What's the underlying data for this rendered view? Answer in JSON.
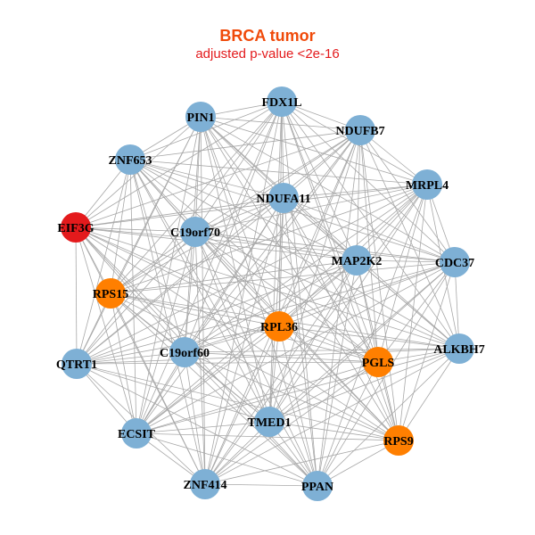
{
  "title": "BRCA tumor",
  "subtitle": "adjusted p-value <2e-16",
  "colors": {
    "default": "#7eb0d5",
    "orange": "#ff7f00",
    "red": "#e41a1c",
    "edge": "#a8a8a8"
  },
  "nodes": [
    {
      "name": "FDX1L",
      "color": "default"
    },
    {
      "name": "PIN1",
      "color": "default"
    },
    {
      "name": "NDUFB7",
      "color": "default"
    },
    {
      "name": "ZNF653",
      "color": "default"
    },
    {
      "name": "MRPL4",
      "color": "default"
    },
    {
      "name": "NDUFA11",
      "color": "default"
    },
    {
      "name": "EIF3G",
      "color": "red"
    },
    {
      "name": "C19orf70",
      "color": "default"
    },
    {
      "name": "MAP2K2",
      "color": "default"
    },
    {
      "name": "CDC37",
      "color": "default"
    },
    {
      "name": "RPS15",
      "color": "orange"
    },
    {
      "name": "RPL36",
      "color": "orange"
    },
    {
      "name": "C19orf60",
      "color": "default"
    },
    {
      "name": "QTRT1",
      "color": "default"
    },
    {
      "name": "ALKBH7",
      "color": "default"
    },
    {
      "name": "PGLS",
      "color": "orange"
    },
    {
      "name": "TMED1",
      "color": "default"
    },
    {
      "name": "ECSIT",
      "color": "default"
    },
    {
      "name": "RPS9",
      "color": "orange"
    },
    {
      "name": "ZNF414",
      "color": "default"
    },
    {
      "name": "PPAN",
      "color": "default"
    }
  ]
}
